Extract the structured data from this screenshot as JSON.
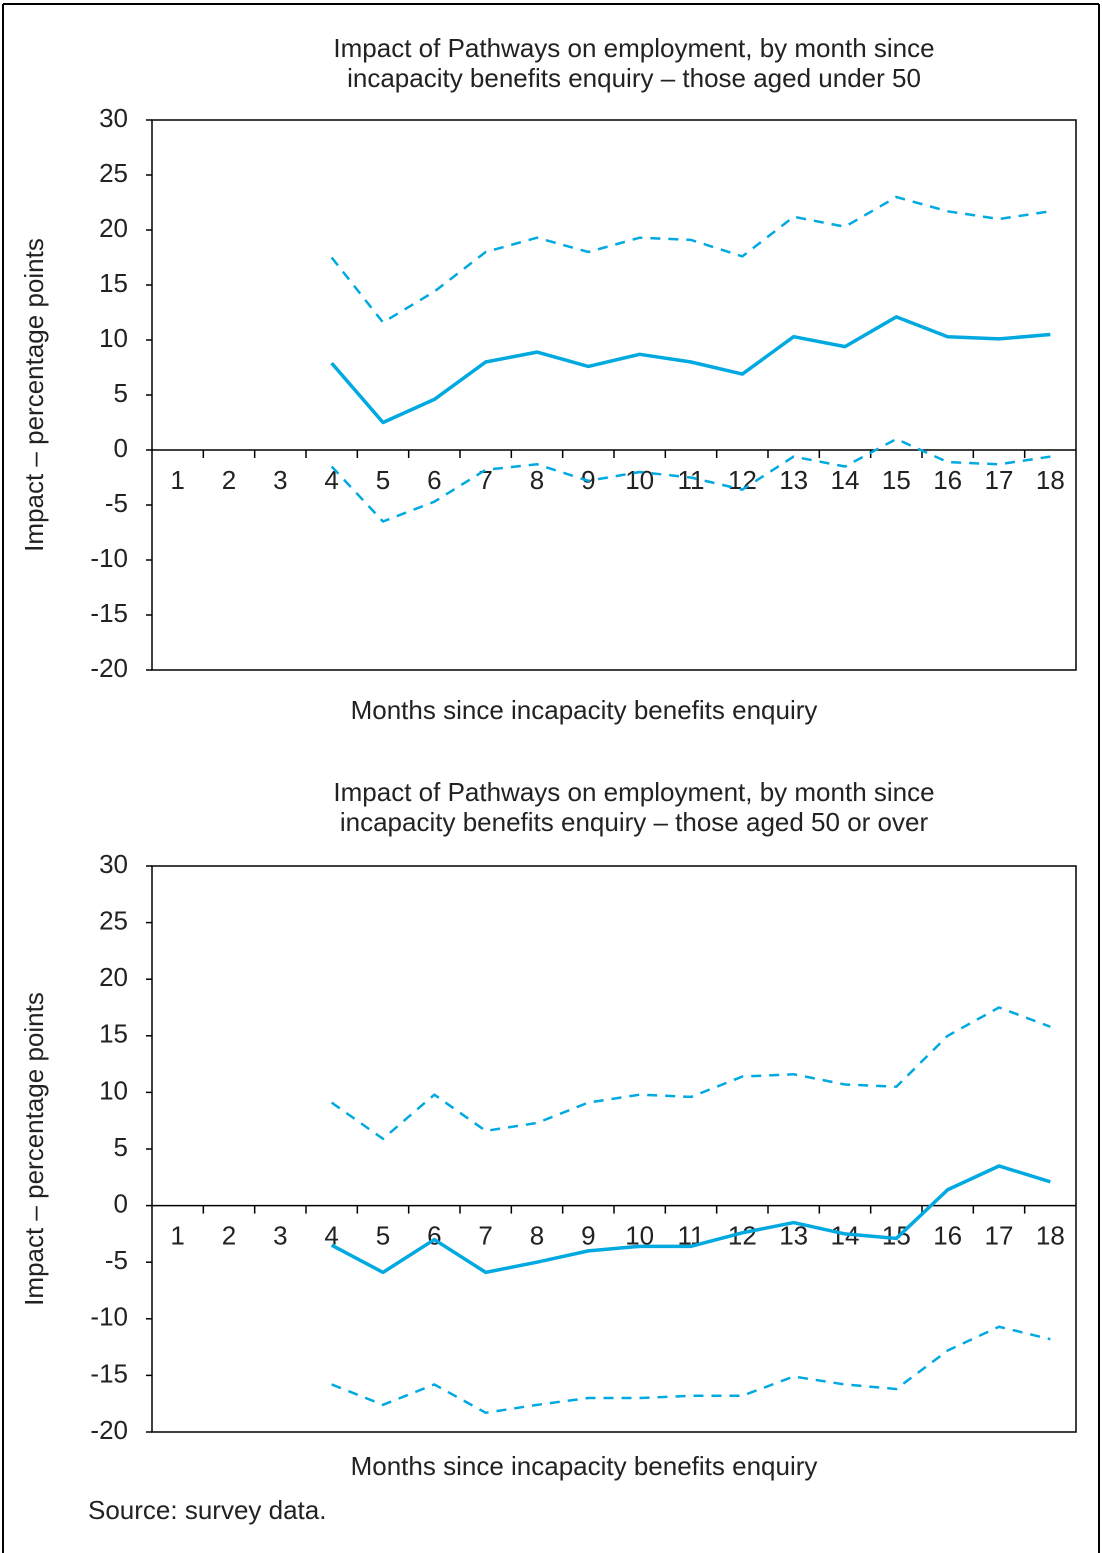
{
  "chart_data": [
    {
      "type": "line",
      "title": [
        "Impact of Pathways on employment, by month since",
        "incapacity benefits enquiry – those aged under 50"
      ],
      "x_label": "Months since incapacity benefits enquiry",
      "y_label": "Impact – percentage points",
      "categories": [
        "1",
        "2",
        "3",
        "4",
        "5",
        "6",
        "7",
        "8",
        "9",
        "10",
        "11",
        "12",
        "13",
        "14",
        "15",
        "16",
        "17",
        "18"
      ],
      "ylim": [
        -20,
        30
      ],
      "yticks": [
        -20,
        -15,
        -10,
        -5,
        0,
        5,
        10,
        15,
        20,
        25,
        30
      ],
      "grid": false,
      "series": [
        {
          "color": "#00a9e0",
          "style": "solid",
          "values": [
            null,
            null,
            null,
            7.9,
            2.5,
            4.6,
            8.0,
            8.9,
            7.6,
            8.7,
            8.0,
            6.9,
            10.3,
            9.4,
            12.1,
            10.3,
            10.1,
            10.5
          ]
        },
        {
          "color": "#00a9e0",
          "style": "dashed",
          "values": [
            null,
            null,
            null,
            17.5,
            11.6,
            14.4,
            18.0,
            19.3,
            18.0,
            19.3,
            19.1,
            17.6,
            21.2,
            20.3,
            23.0,
            21.7,
            21.0,
            21.7
          ]
        },
        {
          "color": "#00a9e0",
          "style": "dashed",
          "values": [
            null,
            null,
            null,
            -1.5,
            -6.5,
            -4.7,
            -1.8,
            -1.3,
            -2.8,
            -2.0,
            -2.5,
            -3.6,
            -0.6,
            -1.5,
            1.0,
            -1.1,
            -1.3,
            -0.6
          ]
        }
      ]
    },
    {
      "type": "line",
      "title": [
        "Impact of Pathways on employment, by month since",
        "incapacity benefits enquiry – those aged 50 or over"
      ],
      "x_label": "Months since incapacity benefits enquiry",
      "y_label": "Impact – percentage points",
      "categories": [
        "1",
        "2",
        "3",
        "4",
        "5",
        "6",
        "7",
        "8",
        "9",
        "10",
        "11",
        "12",
        "13",
        "14",
        "15",
        "16",
        "17",
        "18"
      ],
      "ylim": [
        -20,
        30
      ],
      "yticks": [
        -20,
        -15,
        -10,
        -5,
        0,
        5,
        10,
        15,
        20,
        25,
        30
      ],
      "grid": false,
      "series": [
        {
          "color": "#00a9e0",
          "style": "solid",
          "values": [
            null,
            null,
            null,
            -3.5,
            -5.9,
            -3.0,
            -5.9,
            -5.0,
            -4.0,
            -3.6,
            -3.6,
            -2.4,
            -1.5,
            -2.5,
            -2.9,
            1.4,
            3.5,
            2.1
          ]
        },
        {
          "color": "#00a9e0",
          "style": "dashed",
          "values": [
            null,
            null,
            null,
            9.1,
            5.9,
            9.8,
            6.6,
            7.3,
            9.1,
            9.8,
            9.6,
            11.4,
            11.6,
            10.7,
            10.5,
            15.0,
            17.5,
            15.8
          ]
        },
        {
          "color": "#00a9e0",
          "style": "dashed",
          "values": [
            null,
            null,
            null,
            -15.8,
            -17.6,
            -15.8,
            -18.3,
            -17.6,
            -17.0,
            -17.0,
            -16.8,
            -16.8,
            -15.1,
            -15.8,
            -16.2,
            -12.8,
            -10.7,
            -11.8
          ]
        }
      ]
    }
  ],
  "source": "Source: survey data."
}
